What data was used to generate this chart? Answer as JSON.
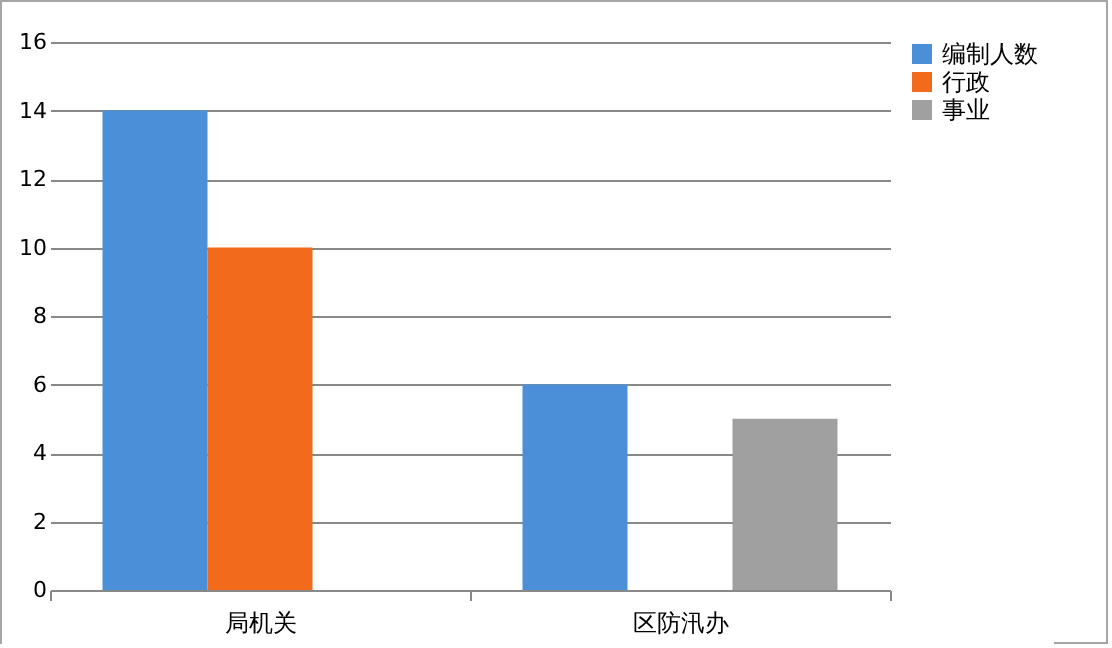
{
  "chart_data": {
    "type": "bar",
    "categories": [
      "局机关",
      "区防汛办"
    ],
    "series": [
      {
        "name": "编制人数",
        "color": "#4a8fd8",
        "values": [
          14,
          6
        ]
      },
      {
        "name": "行政",
        "color": "#f26b1d",
        "values": [
          10,
          null
        ]
      },
      {
        "name": "事业",
        "color": "#a0a0a0",
        "values": [
          null,
          5
        ]
      }
    ],
    "ylim": [
      0,
      16
    ],
    "yticks": [
      0,
      2,
      4,
      6,
      8,
      10,
      12,
      14,
      16
    ],
    "grid": "y",
    "legend": "right"
  }
}
